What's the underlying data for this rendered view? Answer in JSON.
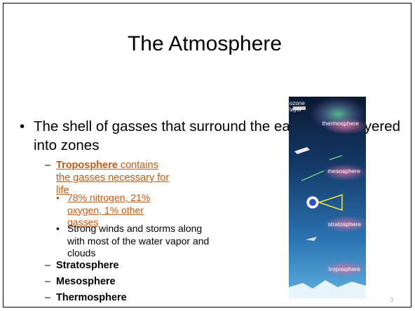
{
  "title": "The Atmosphere",
  "bullets": [
    {
      "text": "The shell of gasses that surround the earth and is layered into zones",
      "children": [
        {
          "bold": "Troposphere",
          "text": "contains the gasses necessary for life",
          "children": [
            {
              "text": "78% nitrogen, 21% oxygen, 1% other gasses"
            },
            {
              "text": "Strong winds and storms along with most of the water vapor and clouds"
            }
          ]
        },
        {
          "bold": "Stratosphere"
        },
        {
          "bold": "Mesosphere"
        },
        {
          "bold": "Thermosphere"
        }
      ]
    }
  ],
  "image_labels": [
    "thermosphere",
    "mesosphere",
    "ozone layer",
    "stratosphere",
    "troposphere"
  ],
  "slide_number": "3"
}
